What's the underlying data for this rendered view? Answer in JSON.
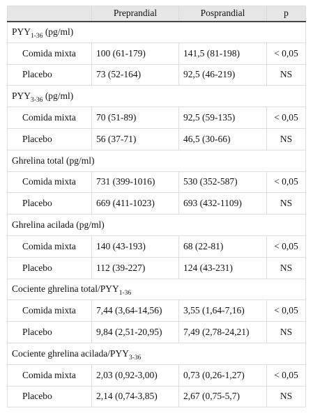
{
  "table": {
    "header": [
      "Preprandial",
      "Posprandial",
      "p"
    ],
    "sections": [
      {
        "label": {
          "pre": "PYY",
          "sub": "1-36",
          "post": " (pg/ml)"
        },
        "rows": [
          [
            "Comida mixta",
            "100 (61-179)",
            "141,5 (81-198)",
            "< 0,05"
          ],
          [
            "Placebo",
            "73 (52-164)",
            "92,5 (46-219)",
            "NS"
          ]
        ]
      },
      {
        "label": {
          "pre": "PYY",
          "sub": "3-36",
          "post": " (pg/ml)"
        },
        "rows": [
          [
            "Comida mixta",
            "70 (51-89)",
            "92,5 (59-135)",
            "< 0,05"
          ],
          [
            "Placebo",
            "56 (37-71)",
            "46,5 (30-66)",
            "NS"
          ]
        ]
      },
      {
        "label": {
          "pre": "Ghrelina total (pg/ml)"
        },
        "rows": [
          [
            "Comida mixta",
            "731 (399-1016)",
            "530 (352-587)",
            "< 0,05"
          ],
          [
            "Placebo",
            "669 (411-1023)",
            "693 (432-1109)",
            "NS"
          ]
        ]
      },
      {
        "label": {
          "pre": "Ghrelina acilada (pg/ml)"
        },
        "rows": [
          [
            "Comida mixta",
            "140 (43-193)",
            "68 (22-81)",
            "< 0,05"
          ],
          [
            "Placebo",
            "112 (39-227)",
            "124 (43-231)",
            "NS"
          ]
        ]
      },
      {
        "label": {
          "pre": "Cociente ghrelina total/PYY",
          "sub": "1-36"
        },
        "rows": [
          [
            "Comida mixta",
            "7,44 (3,64-14,56)",
            "3,55 (1,64-7,16)",
            "< 0,05"
          ],
          [
            "Placebo",
            "9,84 (2,51-20,95)",
            "7,49 (2,78-24,21)",
            "NS"
          ]
        ]
      },
      {
        "label": {
          "pre": "Cociente ghrelina acilada/PYY",
          "sub": "3-36"
        },
        "rows": [
          [
            "Comida mixta",
            "2,03 (0,92-3,00)",
            "0,73 (0,26-1,27)",
            "< 0,05"
          ],
          [
            "Placebo",
            "2,14 (0,74-3,85)",
            "2,67 (0,75-5,7)",
            "NS"
          ]
        ]
      }
    ]
  }
}
